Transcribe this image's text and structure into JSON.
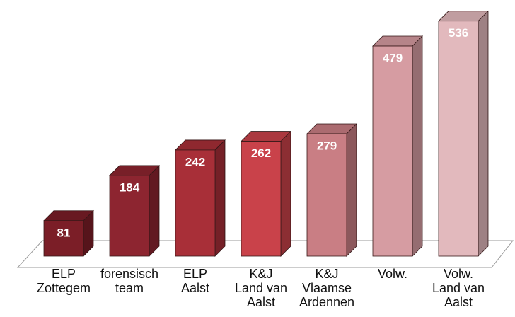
{
  "chart_data": {
    "type": "bar3d",
    "categories": [
      "ELP\nZottegem",
      "forensisch\nteam",
      "ELP\nAalst",
      "K&J\nLand van\nAalst",
      "K&J\nVlaamse\nArdennen",
      "Volw.",
      "Volw.\nLand van\nAalst"
    ],
    "values": [
      81,
      184,
      242,
      262,
      279,
      479,
      536
    ],
    "colors": [
      "#7b1e27",
      "#8d2530",
      "#a82f38",
      "#c9424a",
      "#c97e84",
      "#d69ca2",
      "#e2b9bd"
    ]
  }
}
